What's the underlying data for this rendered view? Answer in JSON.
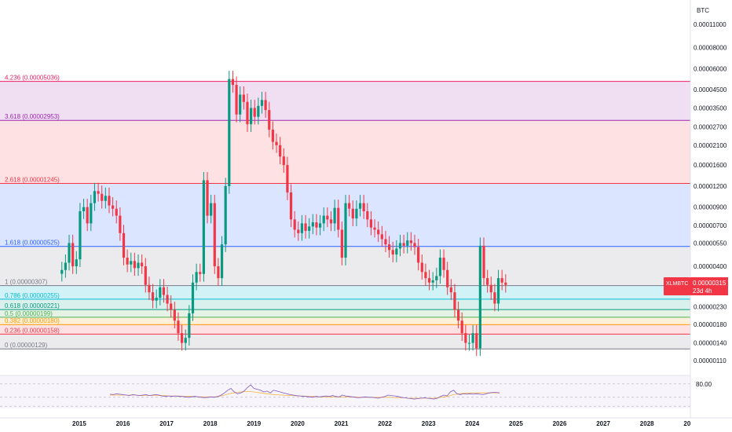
{
  "chart_data": {
    "type": "candlestick",
    "symbol": "XLMBTC",
    "currency": "BTC",
    "scale": "log",
    "price_badge": {
      "price": "0.00000315",
      "countdown": "23d 4h",
      "color": "#f23645"
    },
    "y_ticks": [
      "0.00011000",
      "0.00008000",
      "0.00006000",
      "0.00004500",
      "0.00003500",
      "0.00002700",
      "0.00002100",
      "0.00001600",
      "0.00001200",
      "0.00000900",
      "0.00000700",
      "0.00000550",
      "0.00000400",
      "0.00000300",
      "0.00000230",
      "0.00000180",
      "0.00000140",
      "0.00000110"
    ],
    "x_ticks": [
      "2015",
      "2016",
      "2017",
      "2018",
      "2019",
      "2020",
      "2021",
      "2022",
      "2023",
      "2024",
      "2025",
      "2026",
      "2027",
      "2028",
      "20"
    ],
    "fib_levels": [
      {
        "label": "4.236 (0.00005036)",
        "price": 5.036e-05,
        "color": "#e91e63"
      },
      {
        "label": "3.618 (0.00002953)",
        "price": 2.953e-05,
        "color": "#9c27b0"
      },
      {
        "label": "2.618 (0.00001245)",
        "price": 1.245e-05,
        "color": "#f23645"
      },
      {
        "label": "1.618 (0.00000525)",
        "price": 5.25e-06,
        "color": "#2962ff"
      },
      {
        "label": "1 (0.00000307)",
        "price": 3.07e-06,
        "color": "#787b86"
      },
      {
        "label": "0.786 (0.00000255)",
        "price": 2.55e-06,
        "color": "#00bcd4"
      },
      {
        "label": "0.618 (0.00000221)",
        "price": 2.21e-06,
        "color": "#089981"
      },
      {
        "label": "0.5 (0.00000199)",
        "price": 1.99e-06,
        "color": "#4caf50"
      },
      {
        "label": "0.382 (0.00000180)",
        "price": 1.8e-06,
        "color": "#ff9800"
      },
      {
        "label": "0.236 (0.00000158)",
        "price": 1.58e-06,
        "color": "#f23645"
      },
      {
        "label": "0 (0.00000129)",
        "price": 1.29e-06,
        "color": "#787b86"
      }
    ],
    "fib_fills": [
      {
        "from": 5.036e-05,
        "to": 2.953e-05,
        "color": "rgba(156,39,176,0.15)"
      },
      {
        "from": 2.953e-05,
        "to": 1.245e-05,
        "color": "rgba(242,54,69,0.15)"
      },
      {
        "from": 1.245e-05,
        "to": 5.25e-06,
        "color": "rgba(41,98,255,0.17)"
      },
      {
        "from": 5.25e-06,
        "to": 3.07e-06,
        "color": "rgba(120,123,134,0.15)"
      },
      {
        "from": 3.07e-06,
        "to": 2.55e-06,
        "color": "rgba(0,188,212,0.18)"
      },
      {
        "from": 2.55e-06,
        "to": 2.21e-06,
        "color": "rgba(8,153,129,0.15)"
      },
      {
        "from": 2.21e-06,
        "to": 1.99e-06,
        "color": "rgba(76,175,80,0.15)"
      },
      {
        "from": 1.99e-06,
        "to": 1.8e-06,
        "color": "rgba(255,152,0,0.15)"
      },
      {
        "from": 1.8e-06,
        "to": 1.58e-06,
        "color": "rgba(242,54,69,0.15)"
      },
      {
        "from": 1.58e-06,
        "to": 1.29e-06,
        "color": "rgba(120,123,134,0.15)"
      }
    ],
    "candles_start_year": 2014.6,
    "candle_step_years": 0.0833,
    "closes": [
      3.8e-06,
      4.2e-06,
      5.5e-06,
      4e-06,
      4.4e-06,
      8.5e-06,
      9e-06,
      7.2e-06,
      9.5e-06,
      1.12e-05,
      1.08e-05,
      9.8e-06,
      1.05e-05,
      9.2e-06,
      8.8e-06,
      8e-06,
      6.3e-06,
      4.5e-06,
      4.1e-06,
      4.3e-06,
      3.9e-06,
      4.2e-06,
      4e-06,
      3.1e-06,
      2.8e-06,
      2.5e-06,
      2.6e-06,
      3e-06,
      2.7e-06,
      2.4e-06,
      2.2e-06,
      1.9e-06,
      1.6e-06,
      1.4e-06,
      1.5e-06,
      2.1e-06,
      3.2e-06,
      3.7e-06,
      3.6e-06,
      1.3e-05,
      8e-06,
      9.5e-06,
      4e-06,
      3.4e-06,
      5.4e-06,
      1.2e-05,
      5.2e-05,
      4.8e-05,
      3.2e-05,
      4.2e-05,
      3.8e-05,
      2.8e-05,
      3.5e-05,
      3.1e-05,
      3.6e-05,
      3.9e-05,
      3.4e-05,
      2.6e-05,
      2.2e-05,
      2.1e-05,
      1.8e-05,
      1.6e-05,
      1.1e-05,
      7.6e-06,
      6.6e-06,
      6.3e-06,
      7.2e-06,
      6.5e-06,
      6.9e-06,
      7.3e-06,
      6.8e-06,
      7.2e-06,
      8e-06,
      7.6e-06,
      7.2e-06,
      8.9e-06,
      6.6e-06,
      4.5e-06,
      9.5e-06,
      8.8e-06,
      7.7e-06,
      8.8e-06,
      9.5e-06,
      8.5e-06,
      7.6e-06,
      6.8e-06,
      6.6e-06,
      6.2e-06,
      5.8e-06,
      5.4e-06,
      5e-06,
      4.7e-06,
      5.1e-06,
      5.5e-06,
      5.3e-06,
      5.7e-06,
      5.5e-06,
      5.2e-06,
      4.2e-06,
      3.7e-06,
      3.4e-06,
      3.2e-06,
      3.3e-06,
      3.5e-06,
      4.5e-06,
      3.8e-06,
      3e-06,
      2.8e-06,
      2.2e-06,
      1.9e-06,
      1.6e-06,
      1.4e-06,
      1.4e-06,
      1.6e-06,
      1.3e-06,
      5.3e-06,
      3.4e-06,
      3.1e-06,
      2.8e-06,
      2.4e-06,
      3.4e-06,
      3.2e-06,
      3.1e-06
    ],
    "rsi": {
      "upper_label": "80.00",
      "values": [
        57,
        56,
        58,
        57,
        56,
        55,
        54,
        56,
        55,
        54,
        55,
        56,
        54,
        55,
        56,
        55,
        53,
        52,
        53,
        52,
        53,
        52,
        52,
        51,
        50,
        51,
        52,
        51,
        50,
        49,
        50,
        51,
        50,
        52,
        55,
        60,
        66,
        70,
        62,
        58,
        60,
        64,
        72,
        78,
        70,
        68,
        66,
        62,
        64,
        60,
        66,
        64,
        62,
        60,
        58,
        56,
        55,
        54,
        53,
        52,
        52,
        51,
        50,
        52,
        51,
        52,
        53,
        52,
        54,
        52,
        51,
        55,
        53,
        52,
        51,
        50,
        49,
        50,
        51,
        50,
        50,
        49,
        48,
        50,
        52,
        55,
        54,
        53,
        52,
        50,
        49,
        48,
        47,
        46,
        47,
        48,
        49,
        48,
        47,
        46,
        48,
        52,
        55,
        53,
        62,
        66,
        58,
        56,
        58,
        57,
        58,
        57,
        58,
        57,
        56,
        58,
        60,
        61,
        61,
        60
      ],
      "ma": [
        55,
        55,
        55,
        55,
        55,
        55,
        55,
        55,
        55,
        54,
        54,
        54,
        54,
        54,
        54,
        54,
        54,
        54,
        53,
        53,
        53,
        53,
        52,
        52,
        52,
        52,
        52,
        51,
        51,
        51,
        51,
        51,
        51,
        52,
        53,
        55,
        57,
        59,
        60,
        61,
        62,
        63,
        63,
        63,
        62,
        61,
        60,
        59,
        58,
        57,
        56,
        56,
        55,
        55,
        54,
        54,
        54,
        53,
        53,
        53,
        52,
        52,
        52,
        52,
        51,
        51,
        51,
        51,
        51,
        51,
        51,
        51,
        51,
        51,
        51,
        51,
        50,
        50,
        50,
        50,
        50,
        50,
        50,
        50,
        50,
        50,
        50,
        49,
        49,
        49,
        49,
        48,
        48,
        48,
        48,
        48,
        48,
        48,
        48,
        48,
        49,
        50,
        51,
        52,
        54,
        56,
        57,
        58,
        59,
        59,
        60,
        60,
        60,
        60,
        60,
        60,
        60,
        60,
        60,
        60
      ]
    }
  }
}
